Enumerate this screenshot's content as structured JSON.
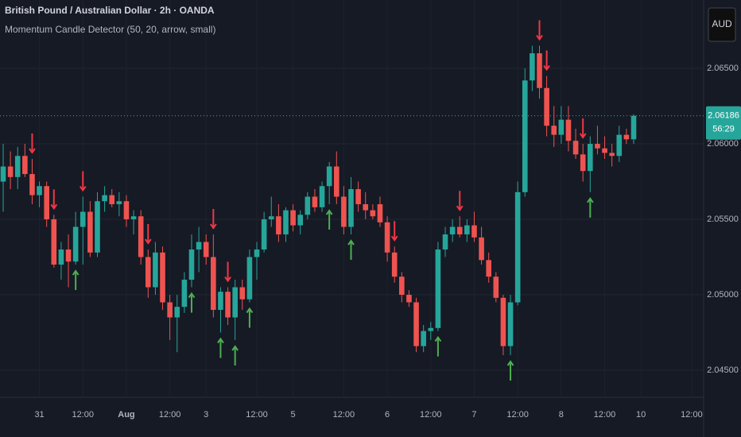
{
  "chart_data": {
    "type": "candlestick",
    "title": "British Pound / Australian Dollar · 2h · OANDA",
    "subtitle": "Momentum Candle Detector (50, 20, arrow, small)",
    "currency": "AUD",
    "countdown": "56:29",
    "last_price": 2.06186,
    "up_color": "#26a69a",
    "down_color": "#ef5350",
    "up_arrow_color": "#4caf50",
    "down_arrow_color": "#f23645",
    "grid": true,
    "ylim": [
      2.04321,
      2.06953
    ],
    "yticks": [
      {
        "value": 2.045,
        "label": "2.04500"
      },
      {
        "value": 2.05,
        "label": "2.05000"
      },
      {
        "value": 2.055,
        "label": "2.05500"
      },
      {
        "value": 2.06,
        "label": "2.06000"
      },
      {
        "value": 2.065,
        "label": "2.06500"
      }
    ],
    "categories": [
      null,
      null,
      null,
      null,
      null,
      "31",
      null,
      null,
      null,
      null,
      null,
      "12:00",
      null,
      null,
      null,
      null,
      null,
      "Aug",
      null,
      null,
      null,
      null,
      null,
      "12:00",
      null,
      null,
      null,
      null,
      "3",
      null,
      null,
      null,
      null,
      null,
      null,
      "12:00",
      null,
      null,
      null,
      null,
      "5",
      null,
      null,
      null,
      null,
      null,
      null,
      "12:00",
      null,
      null,
      null,
      null,
      null,
      "6",
      null,
      null,
      null,
      null,
      null,
      "12:00",
      null,
      null,
      null,
      null,
      null,
      "7",
      null,
      null,
      null,
      null,
      null,
      "12:00",
      null,
      null,
      null,
      null,
      null,
      "8",
      null,
      null,
      null,
      null,
      null,
      "12:00",
      null,
      null,
      null,
      null,
      "10",
      null,
      null,
      null,
      null,
      null,
      null,
      "12:00"
    ],
    "open": [
      2.0575,
      2.0585,
      2.0578,
      2.0592,
      2.058,
      2.0566,
      2.0572,
      2.055,
      2.052,
      2.053,
      2.0522,
      2.0545,
      2.0555,
      2.0528,
      2.0562,
      2.0566,
      2.056,
      2.0562,
      2.055,
      2.0552,
      2.0525,
      2.0505,
      2.0528,
      2.0495,
      2.0485,
      2.0492,
      2.051,
      2.053,
      2.0535,
      2.0525,
      2.049,
      2.0502,
      2.0485,
      2.0505,
      2.0497,
      2.0525,
      2.053,
      2.055,
      2.0552,
      2.054,
      2.0556,
      2.0546,
      2.0553,
      2.0565,
      2.0558,
      2.0572,
      2.0585,
      2.0565,
      2.0545,
      2.057,
      2.056,
      2.0556,
      2.056,
      2.0548,
      2.0528,
      2.0512,
      2.05,
      2.0495,
      2.0466,
      2.0476,
      2.0478,
      2.053,
      2.054,
      2.0545,
      2.054,
      2.0546,
      2.0538,
      2.0523,
      2.0512,
      2.0498,
      2.0466,
      2.0495,
      2.0568,
      2.0642,
      2.066,
      2.0637,
      2.0612,
      2.0606,
      2.0616,
      2.0602,
      2.0593,
      2.0582,
      2.06,
      2.0597,
      2.0594,
      2.0592,
      2.0606,
      2.0603,
      null,
      null,
      null,
      null,
      null,
      null,
      null,
      null
    ],
    "high": [
      2.06,
      2.0595,
      2.0598,
      2.06,
      2.059,
      2.0575,
      2.0575,
      2.0553,
      2.0535,
      2.054,
      2.0555,
      2.0565,
      2.0562,
      2.0568,
      2.0572,
      2.057,
      2.0568,
      2.0566,
      2.0556,
      2.0556,
      2.053,
      2.0535,
      2.0532,
      2.05,
      2.05,
      2.0515,
      2.054,
      2.0545,
      2.054,
      2.054,
      2.0505,
      2.0505,
      2.051,
      2.051,
      2.053,
      2.0535,
      2.0555,
      2.0565,
      2.056,
      2.0558,
      2.056,
      2.0556,
      2.0568,
      2.057,
      2.0575,
      2.0588,
      2.0595,
      2.0572,
      2.0578,
      2.0575,
      2.0568,
      2.056,
      2.0565,
      2.0552,
      2.0532,
      2.0515,
      2.0503,
      2.0498,
      2.048,
      2.0482,
      2.0535,
      2.0545,
      2.055,
      2.0552,
      2.055,
      2.0555,
      2.0545,
      2.0528,
      2.0515,
      2.05,
      2.05,
      2.0575,
      2.065,
      2.0665,
      2.0665,
      2.0645,
      2.0625,
      2.0625,
      2.0625,
      2.061,
      2.06,
      2.0605,
      2.0612,
      2.0605,
      2.06,
      2.0612,
      2.061,
      2.06195,
      null,
      null,
      null,
      null,
      null,
      null,
      null,
      null
    ],
    "low": [
      2.0555,
      2.057,
      2.057,
      2.0578,
      2.056,
      2.0558,
      2.0545,
      2.0518,
      2.051,
      2.0505,
      2.052,
      2.052,
      2.0525,
      2.0525,
      2.0555,
      2.0558,
      2.0552,
      2.0545,
      2.054,
      2.052,
      2.0498,
      2.05,
      2.049,
      2.047,
      2.0462,
      2.0488,
      2.0505,
      2.0515,
      2.052,
      2.0485,
      2.0475,
      2.048,
      2.047,
      2.049,
      2.0495,
      2.051,
      2.0528,
      2.0545,
      2.0535,
      2.0535,
      2.0542,
      2.054,
      2.055,
      2.0555,
      2.0555,
      2.056,
      2.056,
      2.054,
      2.054,
      2.0555,
      2.055,
      2.055,
      2.0545,
      2.0522,
      2.0508,
      2.0495,
      2.0492,
      2.0462,
      2.0462,
      2.047,
      2.0476,
      2.0525,
      2.0535,
      2.0538,
      2.0535,
      2.0535,
      2.052,
      2.0508,
      2.0495,
      2.046,
      2.046,
      2.0493,
      2.0565,
      2.0635,
      2.063,
      2.0605,
      2.0598,
      2.06,
      2.0595,
      2.059,
      2.0575,
      2.0568,
      2.0593,
      2.059,
      2.0585,
      2.0588,
      2.06,
      2.06,
      null,
      null,
      null,
      null,
      null,
      null,
      null,
      null
    ],
    "close": [
      2.0585,
      2.0578,
      2.0592,
      2.058,
      2.0566,
      2.0572,
      2.055,
      2.052,
      2.053,
      2.0522,
      2.0545,
      2.0555,
      2.0528,
      2.0562,
      2.0566,
      2.056,
      2.0562,
      2.055,
      2.0552,
      2.0525,
      2.0505,
      2.0528,
      2.0495,
      2.0485,
      2.0492,
      2.051,
      2.053,
      2.0535,
      2.0525,
      2.049,
      2.0502,
      2.0485,
      2.0505,
      2.0497,
      2.0525,
      2.053,
      2.055,
      2.0552,
      2.054,
      2.0556,
      2.0546,
      2.0553,
      2.0565,
      2.0558,
      2.0572,
      2.0585,
      2.0565,
      2.0545,
      2.057,
      2.056,
      2.0556,
      2.0552,
      2.0548,
      2.0528,
      2.0512,
      2.05,
      2.0495,
      2.0466,
      2.0476,
      2.0478,
      2.053,
      2.054,
      2.0545,
      2.054,
      2.0546,
      2.0538,
      2.0523,
      2.0512,
      2.0498,
      2.0466,
      2.0495,
      2.0568,
      2.0642,
      2.066,
      2.0637,
      2.0612,
      2.0606,
      2.0616,
      2.0602,
      2.0593,
      2.0582,
      2.06,
      2.0597,
      2.0594,
      2.0592,
      2.0606,
      2.0603,
      2.06186,
      null,
      null,
      null,
      null,
      null,
      null,
      null,
      null
    ],
    "down_arrows": [
      4,
      7,
      11,
      20,
      29,
      31,
      54,
      63,
      74,
      75,
      80
    ],
    "up_arrows": [
      10,
      26,
      30,
      32,
      34,
      45,
      48,
      60,
      70,
      81
    ]
  }
}
